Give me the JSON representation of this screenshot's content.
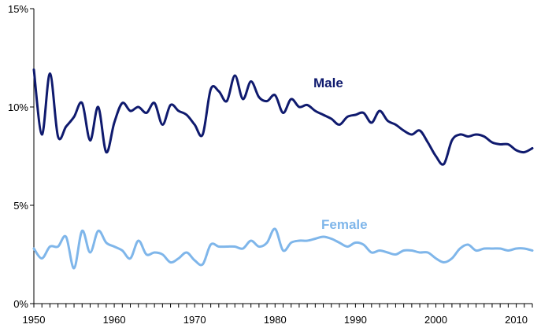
{
  "chart_data": {
    "type": "line",
    "title": "",
    "xlabel": "",
    "ylabel": "",
    "xlim": [
      1950,
      2012
    ],
    "ylim": [
      0,
      15
    ],
    "grid": false,
    "legend": "inline",
    "x_ticks": [
      1950,
      1960,
      1970,
      1980,
      1990,
      2000,
      2010
    ],
    "x_tick_labels": [
      "1950",
      "1960",
      "1970",
      "1980",
      "1990",
      "2000",
      "2010"
    ],
    "y_ticks": [
      0,
      5,
      10,
      15
    ],
    "y_tick_labels": [
      "0%",
      "5%",
      "10%",
      "15%"
    ],
    "x": [
      1950,
      1951,
      1952,
      1953,
      1954,
      1955,
      1956,
      1957,
      1958,
      1959,
      1960,
      1961,
      1962,
      1963,
      1964,
      1965,
      1966,
      1967,
      1968,
      1969,
      1970,
      1971,
      1972,
      1973,
      1974,
      1975,
      1976,
      1977,
      1978,
      1979,
      1980,
      1981,
      1982,
      1983,
      1984,
      1985,
      1986,
      1987,
      1988,
      1989,
      1990,
      1991,
      1992,
      1993,
      1994,
      1995,
      1996,
      1997,
      1998,
      1999,
      2000,
      2001,
      2002,
      2003,
      2004,
      2005,
      2006,
      2007,
      2008,
      2009,
      2010,
      2011,
      2012
    ],
    "series": [
      {
        "name": "Male",
        "color": "#0f1a6e",
        "values": [
          11.9,
          8.6,
          11.7,
          8.5,
          9.0,
          9.5,
          10.2,
          8.3,
          10.0,
          7.7,
          9.2,
          10.2,
          9.8,
          10.0,
          9.7,
          10.2,
          9.1,
          10.1,
          9.8,
          9.6,
          9.1,
          8.6,
          10.9,
          10.8,
          10.3,
          11.6,
          10.4,
          11.3,
          10.5,
          10.3,
          10.6,
          9.7,
          10.4,
          10.0,
          10.1,
          9.8,
          9.6,
          9.4,
          9.1,
          9.5,
          9.6,
          9.7,
          9.2,
          9.8,
          9.3,
          9.1,
          8.8,
          8.6,
          8.8,
          8.2,
          7.5,
          7.1,
          8.3,
          8.6,
          8.5,
          8.6,
          8.5,
          8.2,
          8.1,
          8.1,
          7.8,
          7.7,
          7.9
        ]
      },
      {
        "name": "Female",
        "color": "#7fb6ea",
        "values": [
          2.8,
          2.3,
          2.9,
          2.9,
          3.4,
          1.8,
          3.7,
          2.6,
          3.7,
          3.1,
          2.9,
          2.7,
          2.3,
          3.2,
          2.5,
          2.6,
          2.5,
          2.1,
          2.3,
          2.6,
          2.2,
          2.0,
          3.0,
          2.9,
          2.9,
          2.9,
          2.8,
          3.2,
          2.9,
          3.1,
          3.8,
          2.7,
          3.1,
          3.2,
          3.2,
          3.3,
          3.4,
          3.3,
          3.1,
          2.9,
          3.1,
          3.0,
          2.6,
          2.7,
          2.6,
          2.5,
          2.7,
          2.7,
          2.6,
          2.6,
          2.3,
          2.1,
          2.3,
          2.8,
          3.0,
          2.7,
          2.8,
          2.8,
          2.8,
          2.7,
          2.8,
          2.8,
          2.7
        ]
      }
    ]
  }
}
